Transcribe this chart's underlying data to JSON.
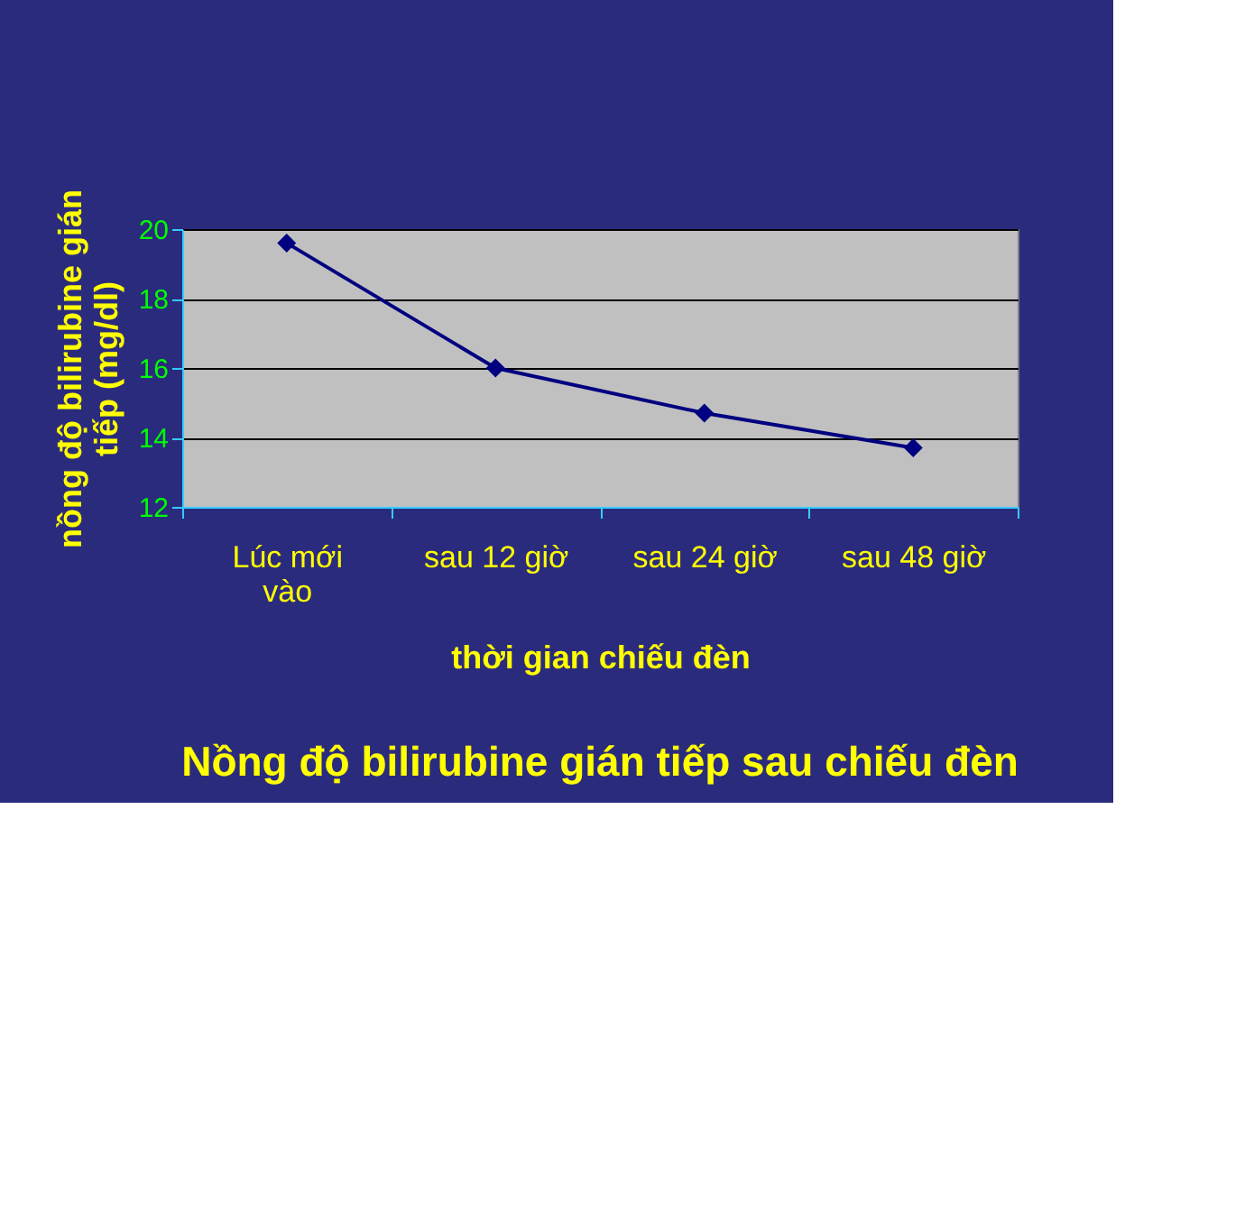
{
  "chart_data": {
    "type": "line",
    "title": "Nồng độ bilirubine gián tiếp sau chiếu đèn",
    "xlabel": "thời gian chiếu đèn",
    "ylabel": "nồng độ bilirubine gián tiếp (mg/dl)",
    "categories": [
      "Lúc mới vào",
      "sau 12 giờ",
      "sau 24 giờ",
      "sau 48 giờ"
    ],
    "series": [
      {
        "color": "#000080",
        "values": [
          19.6,
          16.0,
          14.7,
          13.7
        ]
      }
    ],
    "ylim": [
      12,
      20
    ],
    "yticks": [
      12,
      14,
      16,
      18,
      20
    ],
    "grid": "y",
    "marker": "diamond",
    "line_style": "solid"
  }
}
